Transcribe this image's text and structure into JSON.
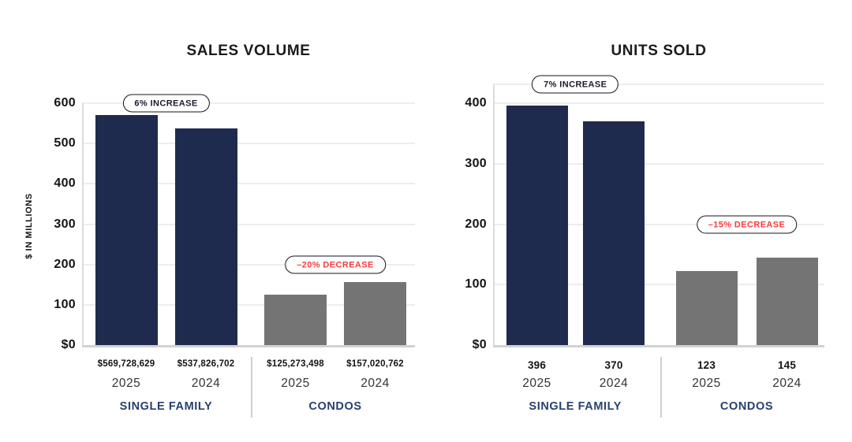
{
  "chart_data": [
    {
      "type": "bar",
      "title": "SALES VOLUME",
      "ylabel": "$ IN MILLIONS",
      "ylim": [
        0,
        600
      ],
      "yticks": [
        600,
        500,
        400,
        300,
        200,
        100,
        0
      ],
      "ytick_labels": [
        "600",
        "500",
        "400",
        "300",
        "200",
        "100",
        "$0"
      ],
      "grid": true,
      "legend": false,
      "groups": [
        {
          "label": "SINGLE FAMILY",
          "bar_color": "#1f2b4e",
          "badge": {
            "text": "6% INCREASE",
            "text_color": "#1a1a2e",
            "at_value": 600
          },
          "bars": [
            {
              "year": "2025",
              "label": "$569,728,629",
              "value": 569728629,
              "axis_value": 569.728629
            },
            {
              "year": "2024",
              "label": "$537,826,702",
              "value": 537826702,
              "axis_value": 537.826702
            }
          ]
        },
        {
          "label": "CONDOS",
          "bar_color": "#747474",
          "badge": {
            "text": "–20% DECREASE",
            "text_color": "#f43b3b",
            "at_value": 200
          },
          "bars": [
            {
              "year": "2025",
              "label": "$125,273,498",
              "value": 125273498,
              "axis_value": 125.273498
            },
            {
              "year": "2024",
              "label": "$157,020,762",
              "value": 157020762,
              "axis_value": 157.020762
            }
          ]
        }
      ]
    },
    {
      "type": "bar",
      "title": "UNITS SOLD",
      "ylabel": "",
      "ylim": [
        0,
        400
      ],
      "yticks": [
        400,
        300,
        200,
        100,
        0
      ],
      "ytick_labels": [
        "400",
        "300",
        "200",
        "100",
        "$0"
      ],
      "grid": true,
      "legend": false,
      "groups": [
        {
          "label": "SINGLE FAMILY",
          "bar_color": "#1f2b4e",
          "badge": {
            "text": "7% INCREASE",
            "text_color": "#1a1a2e",
            "at_value": 431
          },
          "bars": [
            {
              "year": "2025",
              "label": "396",
              "value": 396,
              "axis_value": 396
            },
            {
              "year": "2024",
              "label": "370",
              "value": 370,
              "axis_value": 370
            }
          ]
        },
        {
          "label": "CONDOS",
          "bar_color": "#747474",
          "badge": {
            "text": "–15% DECREASE",
            "text_color": "#f43b3b",
            "at_value": 200
          },
          "bars": [
            {
              "year": "2025",
              "label": "123",
              "value": 123,
              "axis_value": 123
            },
            {
              "year": "2024",
              "label": "145",
              "value": 145,
              "axis_value": 145
            }
          ]
        }
      ]
    }
  ],
  "colors": {
    "bar_navy": "#1f2b4e",
    "bar_gray": "#747474",
    "badge_red": "#f43b3b",
    "badge_dark": "#1a1a2e",
    "badge_border": "#16161f",
    "group_label_navy": "#27406e",
    "gridline": "#ededed",
    "background": "#ffffff"
  }
}
